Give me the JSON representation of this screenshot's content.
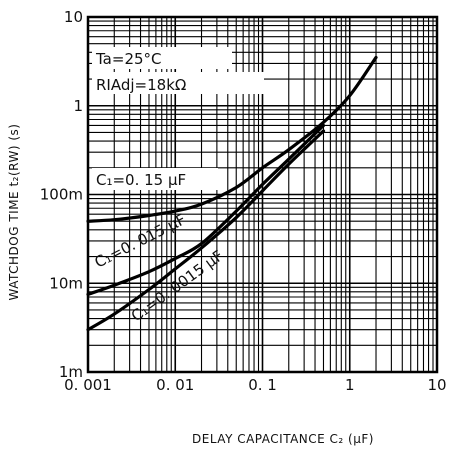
{
  "chart_data": {
    "type": "line",
    "xlabel": "DELAY CAPACITANCE C₂ (μF)",
    "ylabel": "WATCHDOG TIME t₂(RW) (s)",
    "xscale": "log",
    "yscale": "log",
    "xlim": [
      0.001,
      10
    ],
    "ylim": [
      0.001,
      10
    ],
    "grid": true,
    "x_tick_labels": [
      "0. 001",
      "0. 01",
      "0. 1",
      "1",
      "10"
    ],
    "y_tick_labels": [
      "10",
      "1",
      "100m",
      "10m",
      "1m"
    ],
    "annotations": [
      "Ta=25°C",
      "RIAdj=18kΩ"
    ],
    "series": [
      {
        "name": "C₁=0. 15 μF",
        "x": [
          0.001,
          0.002,
          0.005,
          0.01,
          0.02,
          0.05,
          0.1,
          0.2,
          0.5,
          1,
          2
        ],
        "y": [
          0.05,
          0.052,
          0.058,
          0.065,
          0.078,
          0.12,
          0.2,
          0.32,
          0.65,
          1.3,
          3.5
        ]
      },
      {
        "name": "C₁=0. 015 μF",
        "x": [
          0.001,
          0.002,
          0.005,
          0.01,
          0.02,
          0.05,
          0.1,
          0.2,
          0.5
        ],
        "y": [
          0.0075,
          0.0095,
          0.0135,
          0.019,
          0.028,
          0.065,
          0.13,
          0.25,
          0.6
        ]
      },
      {
        "name": "C₁=0. 0015 μF",
        "x": [
          0.001,
          0.002,
          0.005,
          0.01,
          0.02,
          0.05,
          0.1,
          0.2,
          0.5
        ],
        "y": [
          0.003,
          0.0045,
          0.0085,
          0.0145,
          0.025,
          0.055,
          0.11,
          0.22,
          0.52
        ]
      }
    ]
  }
}
